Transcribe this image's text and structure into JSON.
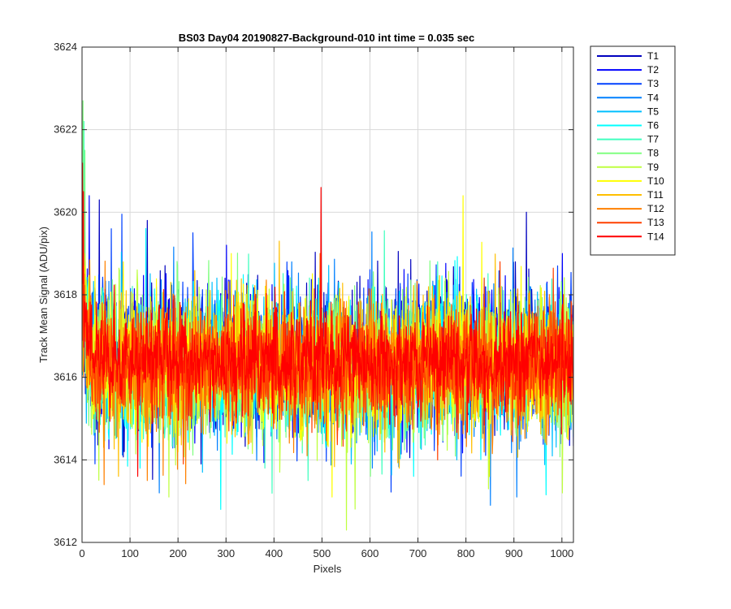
{
  "chart_data": {
    "type": "line",
    "title": "BS03 Day04 20190827-Background-010 int time = 0.035 sec",
    "xlabel": "Pixels",
    "ylabel": "Track Mean Signal (ADU/pix)",
    "xlim": [
      0,
      1024
    ],
    "ylim": [
      3612,
      3624
    ],
    "x_ticks": [
      0,
      100,
      200,
      300,
      400,
      500,
      600,
      700,
      800,
      900,
      1000
    ],
    "y_ticks": [
      3612,
      3614,
      3616,
      3618,
      3620,
      3622,
      3624
    ],
    "grid": true,
    "legend_position": "outside-top-right",
    "x_points": 1024,
    "series": [
      {
        "name": "T1",
        "color": "#0000BF",
        "mean": 3616.5,
        "std": 0.85,
        "spikes": [
          [
            35,
            3620.3
          ],
          [
            135,
            3619.8
          ],
          [
            925,
            3620.0
          ]
        ]
      },
      {
        "name": "T2",
        "color": "#0000FF",
        "mean": 3616.4,
        "std": 0.8,
        "spikes": [
          [
            14,
            3620.4
          ],
          [
            300,
            3619.2
          ],
          [
            1000,
            3619.0
          ]
        ]
      },
      {
        "name": "T3",
        "color": "#0040FF",
        "mean": 3616.4,
        "std": 0.8,
        "spikes": [
          [
            60,
            3619.6
          ],
          [
            230,
            3619.5
          ],
          [
            990,
            3618.7
          ]
        ]
      },
      {
        "name": "T4",
        "color": "#0080FF",
        "mean": 3616.3,
        "std": 0.85,
        "spikes": [
          [
            160,
            3613.2
          ],
          [
            850,
            3612.9
          ],
          [
            905,
            3613.1
          ]
        ]
      },
      {
        "name": "T5",
        "color": "#00BFFF",
        "mean": 3616.3,
        "std": 0.8,
        "spikes": [
          [
            250,
            3613.7
          ],
          [
            560,
            3613.9
          ],
          [
            780,
            3614.0
          ]
        ]
      },
      {
        "name": "T6",
        "color": "#00FFFF",
        "mean": 3616.3,
        "std": 0.85,
        "spikes": [
          [
            288,
            3612.8
          ],
          [
            690,
            3613.6
          ],
          [
            120,
            3613.8
          ]
        ]
      },
      {
        "name": "T7",
        "color": "#40FFBF",
        "mean": 3616.3,
        "std": 0.8,
        "spikes": [
          [
            3,
            3622.2
          ],
          [
            380,
            3613.8
          ],
          [
            470,
            3613.5
          ]
        ]
      },
      {
        "name": "T8",
        "color": "#80FF80",
        "mean": 3616.3,
        "std": 0.85,
        "spikes": [
          [
            1,
            3622.7
          ],
          [
            5,
            3621.5
          ],
          [
            600,
            3613.6
          ]
        ]
      },
      {
        "name": "T9",
        "color": "#BFFF40",
        "mean": 3616.3,
        "std": 0.85,
        "spikes": [
          [
            550,
            3612.3
          ],
          [
            180,
            3613.1
          ],
          [
            1000,
            3613.2
          ]
        ]
      },
      {
        "name": "T10",
        "color": "#FFFF00",
        "mean": 3616.3,
        "std": 0.8,
        "spikes": [
          [
            793,
            3620.4
          ],
          [
            520,
            3613.1
          ],
          [
            310,
            3619.0
          ]
        ]
      },
      {
        "name": "T11",
        "color": "#FFBF00",
        "mean": 3616.3,
        "std": 0.8,
        "spikes": [
          [
            410,
            3619.3
          ],
          [
            75,
            3613.6
          ],
          [
            660,
            3613.8
          ]
        ]
      },
      {
        "name": "T12",
        "color": "#FF8000",
        "mean": 3616.3,
        "std": 0.75,
        "spikes": [
          [
            45,
            3613.4
          ],
          [
            135,
            3613.5
          ],
          [
            495,
            3619.0
          ]
        ]
      },
      {
        "name": "T13",
        "color": "#FF4000",
        "mean": 3616.3,
        "std": 0.7,
        "spikes": [
          [
            210,
            3613.9
          ],
          [
            870,
            3618.8
          ],
          [
            740,
            3614.0
          ]
        ]
      },
      {
        "name": "T14",
        "color": "#FF0000",
        "mean": 3616.4,
        "std": 0.6,
        "spikes": [
          [
            0,
            3621.2
          ],
          [
            2,
            3620.5
          ],
          [
            497,
            3620.6
          ],
          [
            115,
            3613.6
          ]
        ]
      }
    ]
  }
}
